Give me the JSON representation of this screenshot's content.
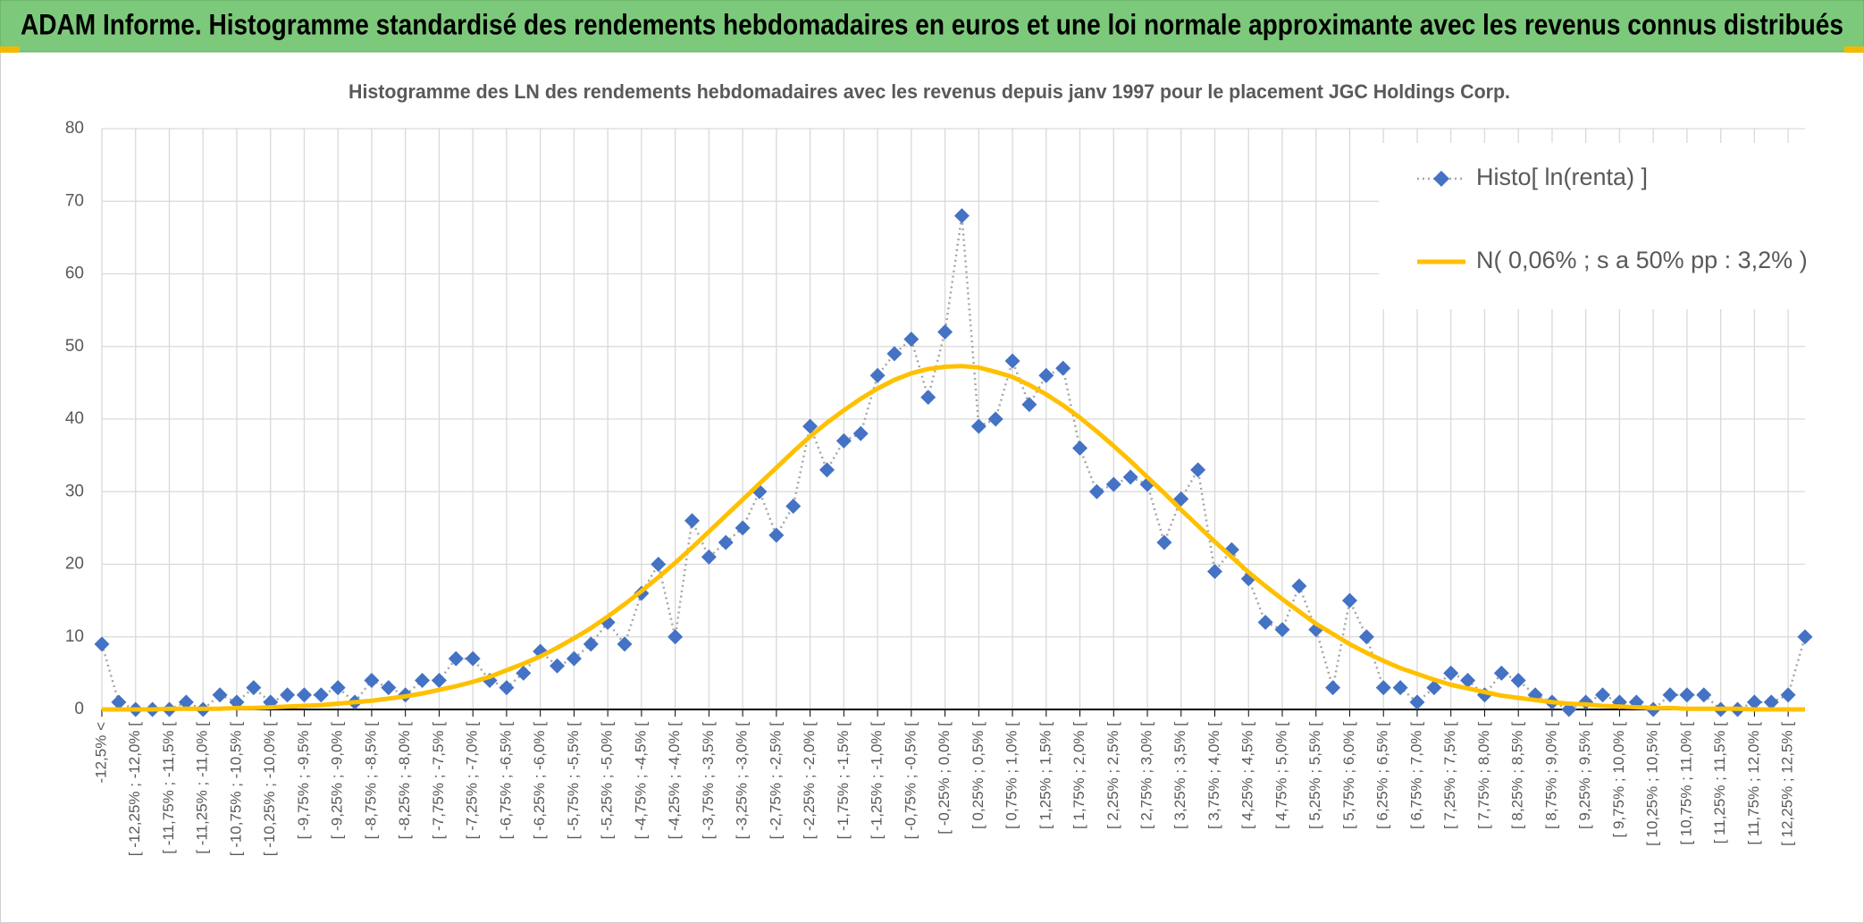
{
  "header": {
    "title": "ADAM Informe. Histogramme standardisé des rendements hebdomadaires en euros et une loi normale approximante avec les revenus connus distribués"
  },
  "chart_data": {
    "type": "line",
    "title": "Histogramme des LN des rendements hebdomadaires avec les revenus depuis janv 1997 pour le placement JGC Holdings Corp.",
    "categories": [
      "-12,5% <",
      null,
      "[ -12,25% ; -12,0% [",
      null,
      "[ -11,75% ; -11,5% [",
      null,
      "[ -11,25% ; -11,0% [",
      null,
      "[ -10,75% ; -10,5% [",
      null,
      "[ -10,25% ; -10,0% [",
      null,
      "[ -9,75% ; -9,5% [",
      null,
      "[ -9,25% ; -9,0% [",
      null,
      "[ -8,75% ; -8,5% [",
      null,
      "[ -8,25% ; -8,0% [",
      null,
      "[ -7,75% ; -7,5% [",
      null,
      "[ -7,25% ; -7,0% [",
      null,
      "[ -6,75% ; -6,5% [",
      null,
      "[ -6,25% ; -6,0% [",
      null,
      "[ -5,75% ; -5,5% [",
      null,
      "[ -5,25% ; -5,0% [",
      null,
      "[ -4,75% ; -4,5% [",
      null,
      "[ -4,25% ; -4,0% [",
      null,
      "[ -3,75% ; -3,5% [",
      null,
      "[ -3,25% ; -3,0% [",
      null,
      "[ -2,75% ; -2,5% [",
      null,
      "[ -2,25% ; -2,0% [",
      null,
      "[ -1,75% ; -1,5% [",
      null,
      "[ -1,25% ; -1,0% [",
      null,
      "[ -0,75% ; -0,5% [",
      null,
      "[ -0,25% ; 0,0% [",
      null,
      "[ 0,25% ; 0,5% [",
      null,
      "[ 0,75% ; 1,0% [",
      null,
      "[ 1,25% ; 1,5% [",
      null,
      "[ 1,75% ; 2,0% [",
      null,
      "[ 2,25% ; 2,5% [",
      null,
      "[ 2,75% ; 3,0% [",
      null,
      "[ 3,25% ; 3,5% [",
      null,
      "[ 3,75% ; 4,0% [",
      null,
      "[ 4,25% ; 4,5% [",
      null,
      "[ 4,75% ; 5,0% [",
      null,
      "[ 5,25% ; 5,5% [",
      null,
      "[ 5,75% ; 6,0% [",
      null,
      "[ 6,25% ; 6,5% [",
      null,
      "[ 6,75% ; 7,0% [",
      null,
      "[ 7,25% ; 7,5% [",
      null,
      "[ 7,75% ; 8,0% [",
      null,
      "[ 8,25% ; 8,5% [",
      null,
      "[ 8,75% ; 9,0% [",
      null,
      "[ 9,25% ; 9,5% [",
      null,
      "[ 9,75% ; 10,0% [",
      null,
      "[ 10,25% ; 10,5% [",
      null,
      "[ 10,75% ; 11,0% [",
      null,
      "[ 11,25% ; 11,5% [",
      null,
      "[ 11,75% ; 12,0% [",
      null,
      "[ 12,25% ; 12,5% [",
      null
    ],
    "series": [
      {
        "name": "Histo[ ln(renta) ]",
        "color": "#4472c4",
        "line_color": "#a5a5a5",
        "line_style": "dotted",
        "marker": "diamond",
        "values": [
          9,
          1,
          0,
          0,
          0,
          1,
          0,
          2,
          1,
          3,
          1,
          2,
          2,
          2,
          3,
          1,
          4,
          3,
          2,
          4,
          4,
          7,
          7,
          4,
          3,
          5,
          8,
          6,
          7,
          9,
          12,
          9,
          16,
          20,
          10,
          26,
          21,
          23,
          25,
          30,
          24,
          28,
          39,
          33,
          37,
          38,
          46,
          49,
          51,
          43,
          52,
          68,
          39,
          40,
          48,
          42,
          46,
          47,
          36,
          30,
          31,
          32,
          31,
          23,
          29,
          33,
          19,
          22,
          18,
          12,
          11,
          17,
          11,
          3,
          15,
          10,
          3,
          3,
          1,
          3,
          5,
          4,
          2,
          5,
          4,
          2,
          1,
          0,
          1,
          2,
          1,
          1,
          0,
          2,
          2,
          2,
          0,
          0,
          1,
          1,
          2,
          10
        ]
      },
      {
        "name": "N( 0,06% ; s a 50% pp : 3,2% )",
        "color": "#ffc000",
        "line_style": "solid",
        "values": [
          0.0,
          0.0,
          0.0,
          0.0,
          0.1,
          0.1,
          0.1,
          0.1,
          0.2,
          0.2,
          0.3,
          0.4,
          0.5,
          0.6,
          0.8,
          1.0,
          1.2,
          1.5,
          1.8,
          2.2,
          2.7,
          3.2,
          3.8,
          4.5,
          5.4,
          6.3,
          7.3,
          8.5,
          9.8,
          11.2,
          12.8,
          14.5,
          16.3,
          18.2,
          20.2,
          22.3,
          24.5,
          26.7,
          28.9,
          31.1,
          33.3,
          35.5,
          37.6,
          39.5,
          41.2,
          42.8,
          44.2,
          45.4,
          46.3,
          46.9,
          47.2,
          47.3,
          47.1,
          46.5,
          45.8,
          44.7,
          43.4,
          41.9,
          40.2,
          38.3,
          36.3,
          34.2,
          32.0,
          29.8,
          27.5,
          25.3,
          23.1,
          21.0,
          18.9,
          17.0,
          15.2,
          13.5,
          11.8,
          10.4,
          9.0,
          7.8,
          6.7,
          5.7,
          4.9,
          4.1,
          3.4,
          2.9,
          2.4,
          1.9,
          1.6,
          1.3,
          1.0,
          0.8,
          0.7,
          0.5,
          0.4,
          0.3,
          0.2,
          0.2,
          0.1,
          0.1,
          0.1,
          0.1,
          0.0,
          0.0,
          0.0,
          0.0
        ]
      }
    ],
    "ylim": [
      0,
      80
    ],
    "yticks": [
      0,
      10,
      20,
      30,
      40,
      50,
      60,
      70,
      80
    ],
    "grid": true,
    "legend": "upper right"
  }
}
